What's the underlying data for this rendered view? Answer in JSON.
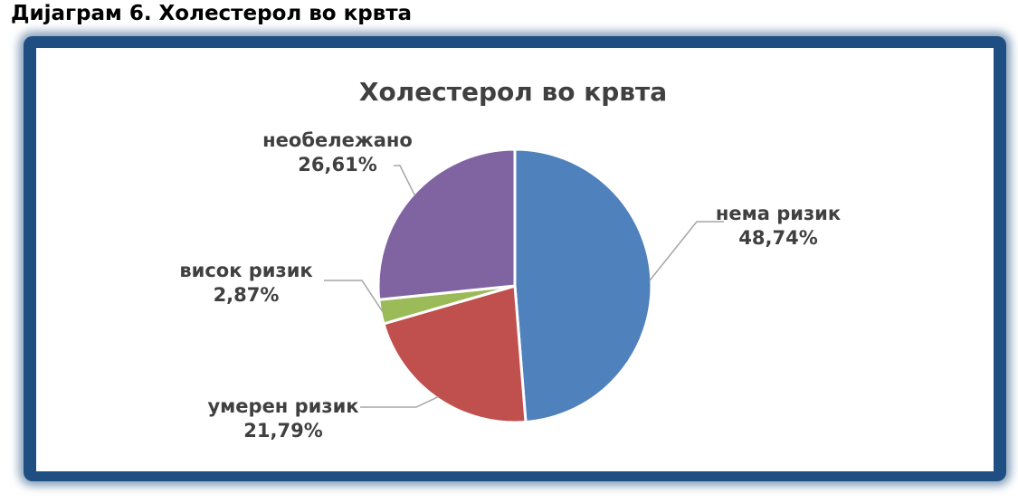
{
  "caption": "Дијаграм 6.  Холестерол во крвта",
  "chart_data": {
    "type": "pie",
    "title": "Холестерол во крвта",
    "slices": [
      {
        "label": "нема ризик",
        "value": 48.74,
        "value_text": "48,74%",
        "color": "#4f81bd"
      },
      {
        "label": "умерен ризик",
        "value": 21.79,
        "value_text": "21,79%",
        "color": "#c0504d"
      },
      {
        "label": "висок ризик",
        "value": 2.87,
        "value_text": "2,87%",
        "color": "#9bbb59"
      },
      {
        "label": "необележано",
        "value": 26.61,
        "value_text": "26,61%",
        "color": "#8064a2"
      }
    ],
    "start_angle": "12 o'clock",
    "direction": "clockwise",
    "legend": "none"
  }
}
